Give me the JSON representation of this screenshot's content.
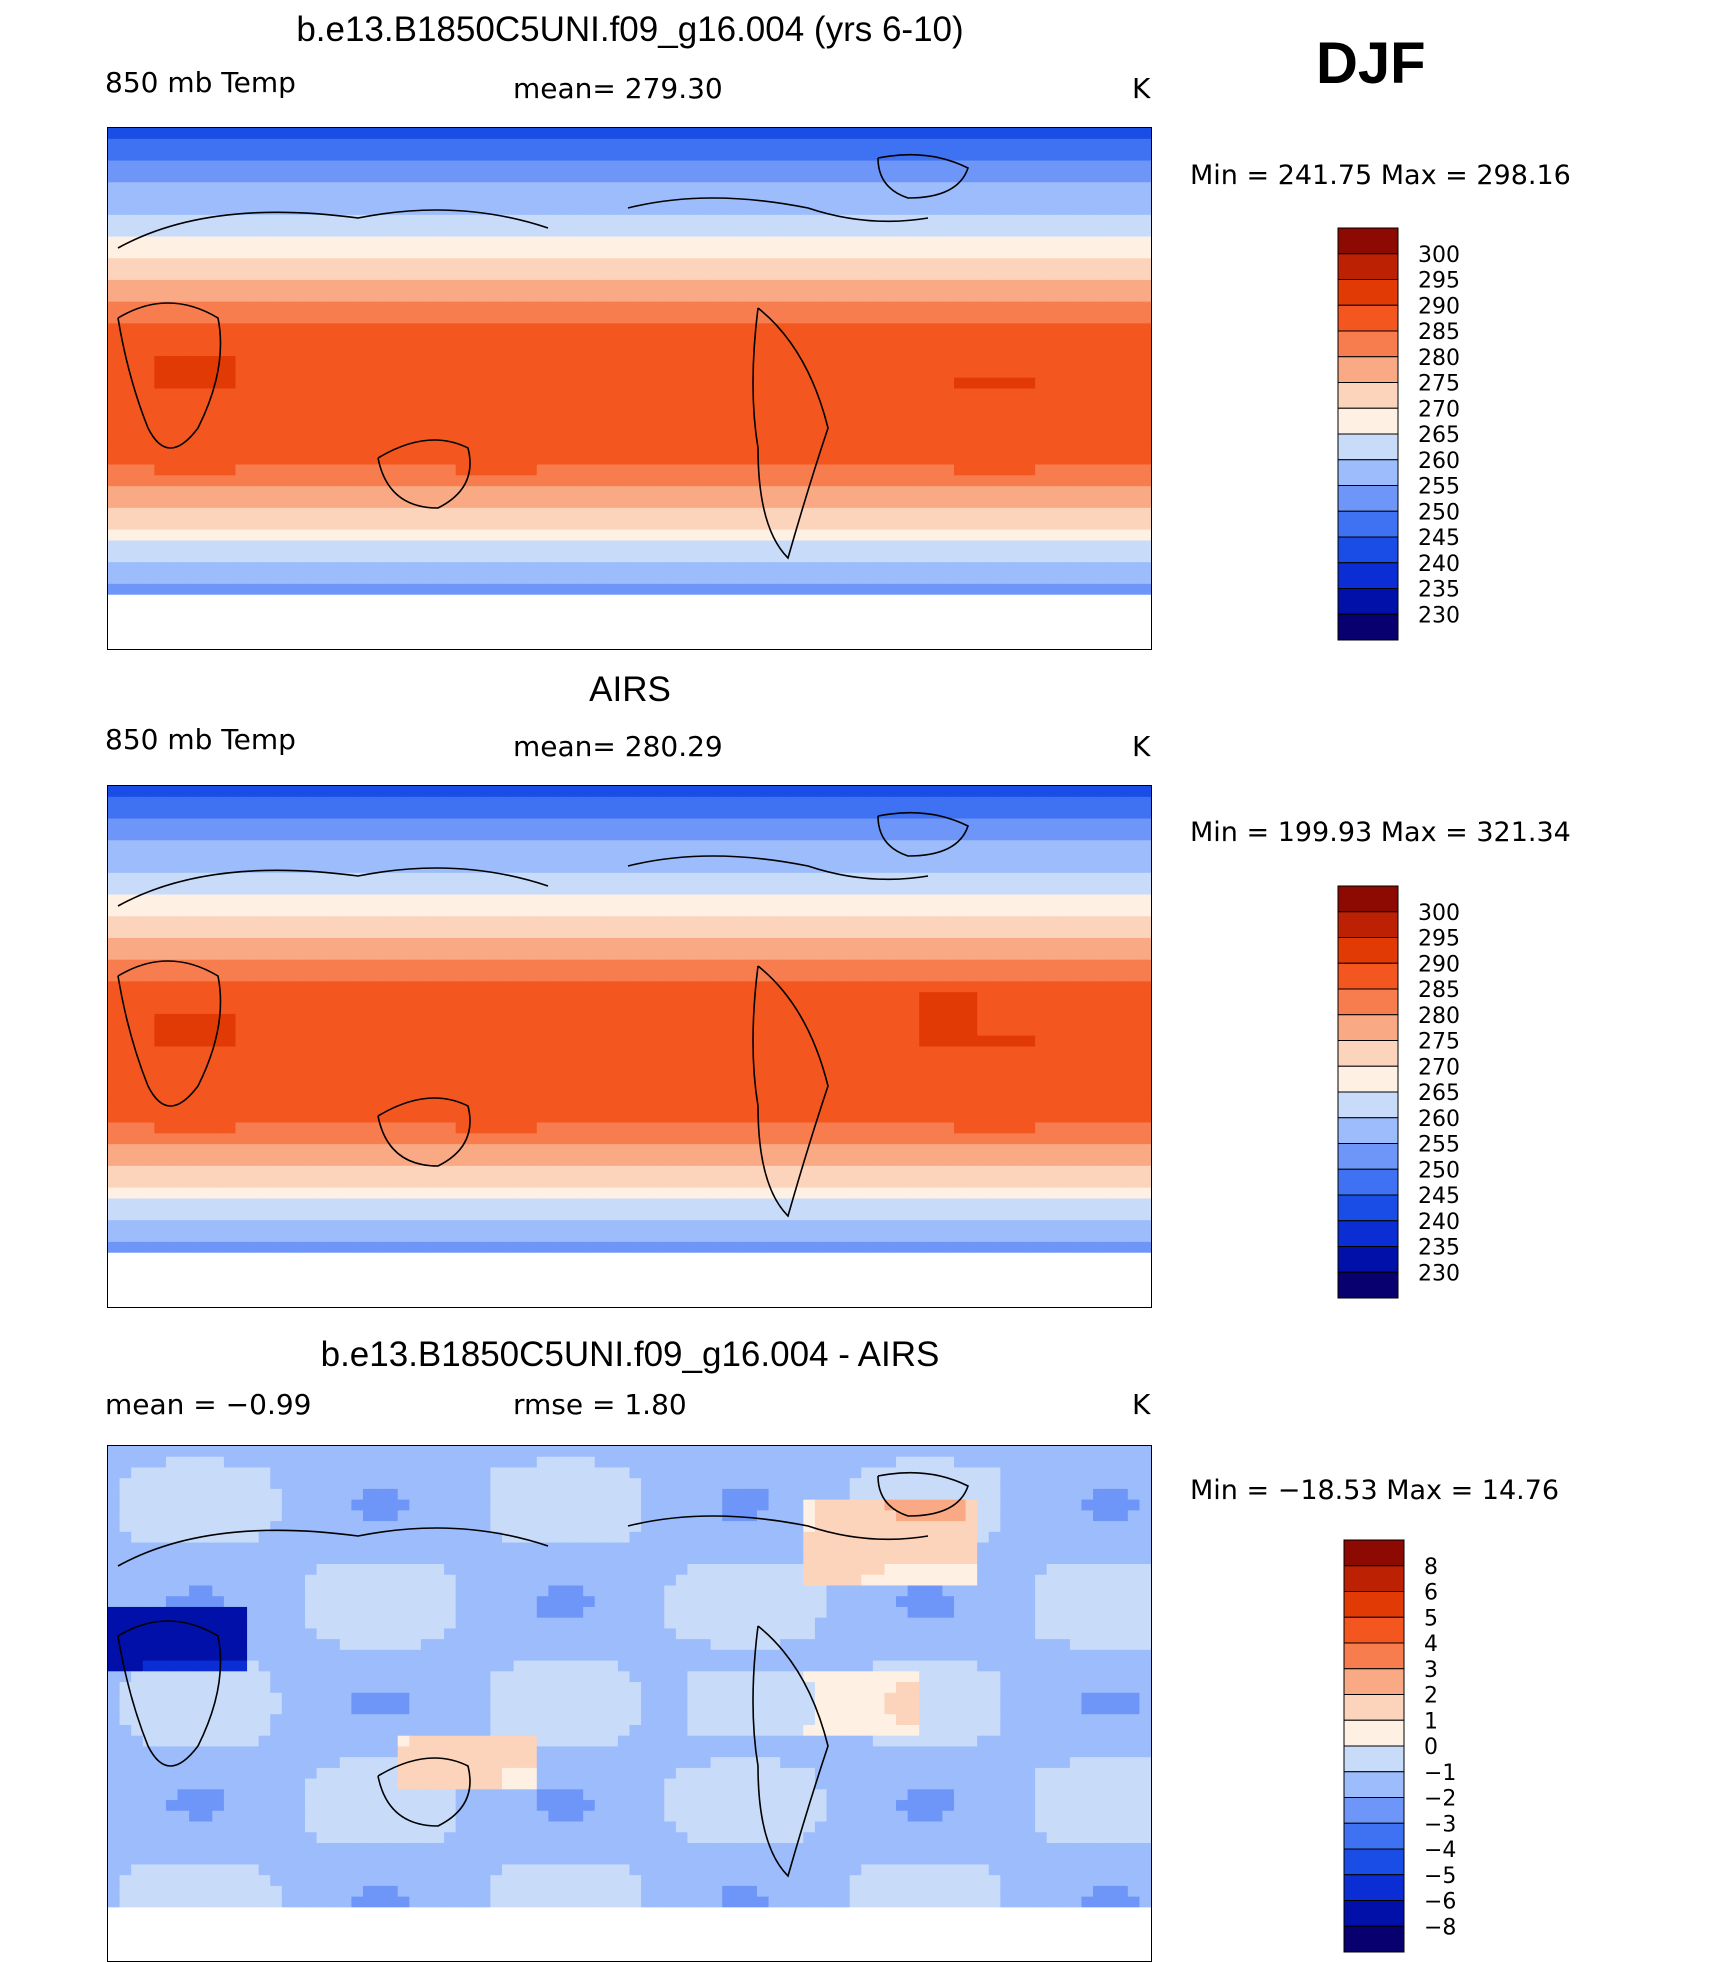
{
  "season": "DJF",
  "colors": {
    "temp_scale": [
      "#08006e",
      "#0010a8",
      "#0a2ed4",
      "#1a4de6",
      "#3f72f2",
      "#6e96f8",
      "#9cbcfb",
      "#c8dcfa",
      "#fff0e4",
      "#fcd3bb",
      "#f9aa84",
      "#f77d4f",
      "#f3561e",
      "#e23a05",
      "#bd2103",
      "#8c0a02"
    ],
    "diff_scale": [
      "#08006e",
      "#0010a8",
      "#0a2ed4",
      "#1a4de6",
      "#3f72f2",
      "#6e96f8",
      "#9cbcfb",
      "#c8dcfa",
      "#fff0e4",
      "#fcd3bb",
      "#f9aa84",
      "#f77d4f",
      "#f3561e",
      "#e23a05",
      "#bd2103",
      "#8c0a02"
    ]
  },
  "panels": [
    {
      "title": "b.e13.B1850C5UNI.f09_g16.004 (yrs 6-10)",
      "left_label": "850 mb Temp",
      "center_label": "mean= 279.30",
      "units": "K",
      "minmax": "Min = 241.75 Max = 298.16",
      "field": "model"
    },
    {
      "title": "AIRS",
      "left_label": "850 mb Temp",
      "center_label": "mean= 280.29",
      "units": "K",
      "minmax": "Min = 199.93 Max = 321.34",
      "field": "obs"
    },
    {
      "title": "b.e13.B1850C5UNI.f09_g16.004 - AIRS",
      "left_label": "mean =   −0.99",
      "center_label": "rmse =    1.80",
      "units": "K",
      "minmax": "Min = −18.53 Max =  14.76",
      "field": "diff"
    }
  ],
  "chart_data": [
    {
      "type": "heatmap",
      "title": "b.e13.B1850C5UNI.f09_g16.004 (yrs 6-10)",
      "variable": "850 mb Temp",
      "units": "K",
      "mean": 279.3,
      "min": 241.75,
      "max": 298.16,
      "colorbar_levels": [
        "300",
        "295",
        "290",
        "285",
        "280",
        "275",
        "270",
        "265",
        "260",
        "255",
        "250",
        "245",
        "240",
        "235",
        "230"
      ]
    },
    {
      "type": "heatmap",
      "title": "AIRS",
      "variable": "850 mb Temp",
      "units": "K",
      "mean": 280.29,
      "min": 199.93,
      "max": 321.34,
      "colorbar_levels": [
        "300",
        "295",
        "290",
        "285",
        "280",
        "275",
        "270",
        "265",
        "260",
        "255",
        "250",
        "245",
        "240",
        "235",
        "230"
      ]
    },
    {
      "type": "heatmap",
      "title": "b.e13.B1850C5UNI.f09_g16.004 - AIRS",
      "units": "K",
      "mean": -0.99,
      "rmse": 1.8,
      "min": -18.53,
      "max": 14.76,
      "colorbar_levels": [
        "8",
        "6",
        "5",
        "4",
        "3",
        "2",
        "1",
        "0",
        "−1",
        "−2",
        "−3",
        "−4",
        "−5",
        "−6",
        "−8"
      ]
    }
  ]
}
